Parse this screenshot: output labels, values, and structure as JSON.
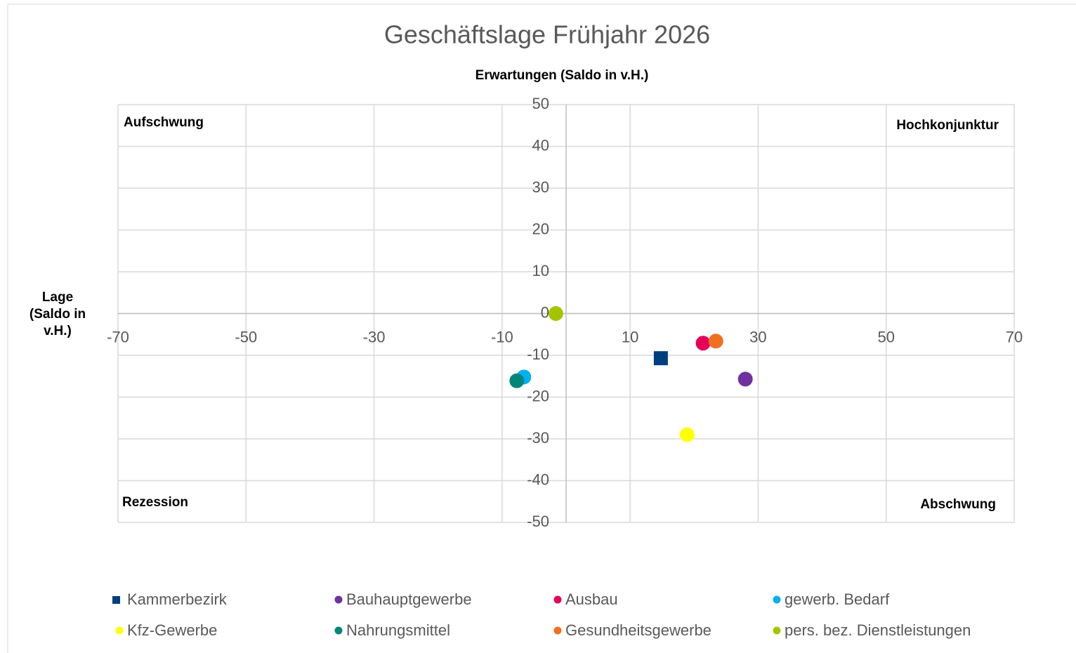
{
  "chart_data": {
    "type": "scatter",
    "title": "Geschäftslage Frühjahr 2026",
    "x_label": "Erwartungen (Saldo in v.H.)",
    "y_label": "Lage (Saldo in v.H.)",
    "annotations": [
      "Aufschwung",
      "Hochkonjunktur",
      "Rezession",
      "Abschwung"
    ],
    "xlim": [
      -70,
      70
    ],
    "xticks": [
      -70,
      -50,
      -30,
      -10,
      10,
      30,
      50,
      70
    ],
    "ylim": [
      -50,
      50
    ],
    "yticks": [
      -50,
      -40,
      -30,
      -20,
      -10,
      0,
      10,
      20,
      30,
      40,
      50
    ],
    "grid": true,
    "series": [
      {
        "name": "Kammerbezirk",
        "color": "#003f7f",
        "marker": "square",
        "x": [
          14.8
        ],
        "values": [
          -10.7
        ]
      },
      {
        "name": "Bauhauptgewerbe",
        "color": "#7030a0",
        "marker": "circle",
        "x": [
          28.0
        ],
        "values": [
          -15.7
        ]
      },
      {
        "name": "Ausbau",
        "color": "#e6005c",
        "marker": "circle",
        "x": [
          21.4
        ],
        "values": [
          -7.1
        ]
      },
      {
        "name": "gewerb. Bedarf",
        "color": "#00b0f0",
        "marker": "circle",
        "x": [
          -6.6
        ],
        "values": [
          -15.2
        ]
      },
      {
        "name": "Kfz-Gewerbe",
        "color": "#ffff00",
        "marker": "circle",
        "x": [
          18.9
        ],
        "values": [
          -29.0
        ]
      },
      {
        "name": "Nahrungsmittel",
        "color": "#00877a",
        "marker": "circle",
        "x": [
          -7.7
        ],
        "values": [
          -16.1
        ]
      },
      {
        "name": "Gesundheitsgewerbe",
        "color": "#f07020",
        "marker": "circle",
        "x": [
          23.4
        ],
        "values": [
          -6.6
        ]
      },
      {
        "name": "pers. bez. Dienstleistungen",
        "color": "#a5c400",
        "marker": "circle",
        "x": [
          -1.6
        ],
        "values": [
          0
        ]
      }
    ]
  }
}
